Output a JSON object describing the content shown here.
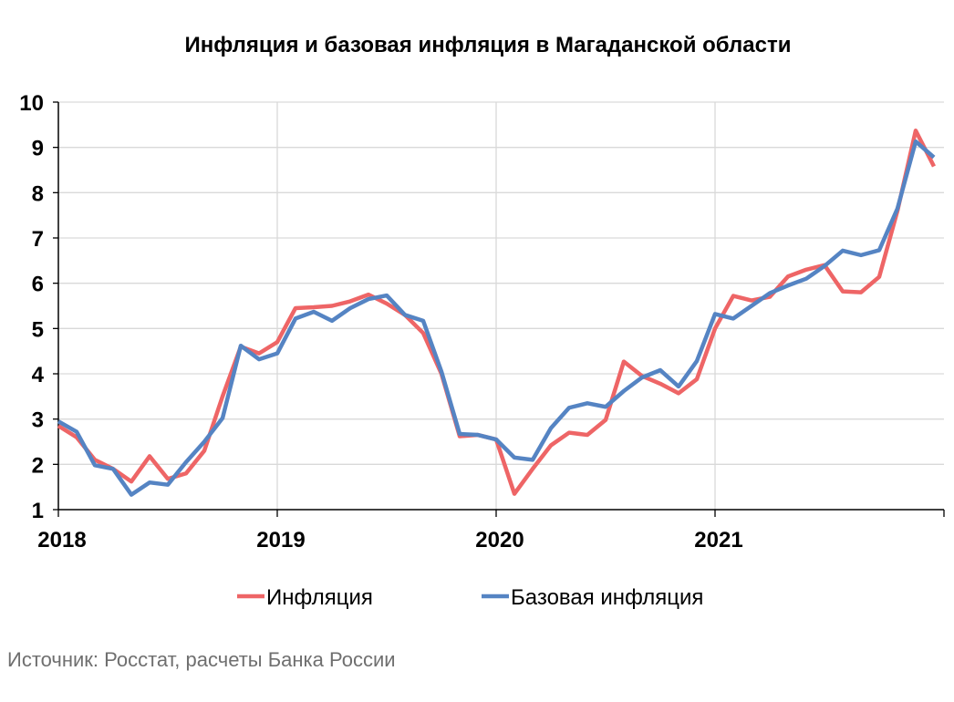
{
  "chart_data": {
    "type": "line",
    "title": "Инфляция и базовая инфляция в Магаданской области",
    "xlabel": "",
    "ylabel": "",
    "ylim": [
      1,
      10
    ],
    "yticks": [
      "1",
      "2",
      "3",
      "4",
      "5",
      "6",
      "7",
      "8",
      "9",
      "10"
    ],
    "xticks": [
      {
        "label": "2018",
        "index": 0
      },
      {
        "label": "2019",
        "index": 12
      },
      {
        "label": "2020",
        "index": 24
      },
      {
        "label": "2021",
        "index": 36
      }
    ],
    "grid": true,
    "legend_position": "bottom",
    "series": [
      {
        "name": "Инфляция",
        "color": "#ee6566",
        "values": [
          2.85,
          2.6,
          2.1,
          1.9,
          1.62,
          2.18,
          1.68,
          1.8,
          2.3,
          3.5,
          4.6,
          4.45,
          4.7,
          5.45,
          5.47,
          5.5,
          5.6,
          5.75,
          5.55,
          5.3,
          4.9,
          4.0,
          2.62,
          2.65,
          2.55,
          1.35,
          1.9,
          2.42,
          2.7,
          2.65,
          2.98,
          4.27,
          3.95,
          3.78,
          3.57,
          3.88,
          5.0,
          5.72,
          5.62,
          5.7,
          6.15,
          6.3,
          6.4,
          5.82,
          5.8,
          6.14,
          7.6,
          9.37,
          8.58
        ]
      },
      {
        "name": "Базовая инфляция",
        "color": "#5584c3",
        "values": [
          2.95,
          2.72,
          1.98,
          1.9,
          1.33,
          1.6,
          1.55,
          2.05,
          2.5,
          3.02,
          4.62,
          4.32,
          4.45,
          5.22,
          5.37,
          5.17,
          5.45,
          5.65,
          5.73,
          5.3,
          5.17,
          4.05,
          2.67,
          2.65,
          2.55,
          2.15,
          2.1,
          2.8,
          3.25,
          3.35,
          3.27,
          3.62,
          3.92,
          4.08,
          3.72,
          4.28,
          5.32,
          5.22,
          5.5,
          5.78,
          5.95,
          6.1,
          6.38,
          6.72,
          6.62,
          6.73,
          7.65,
          9.13,
          8.78
        ]
      }
    ]
  },
  "source": "Источник: Росстат, расчеты Банка России"
}
